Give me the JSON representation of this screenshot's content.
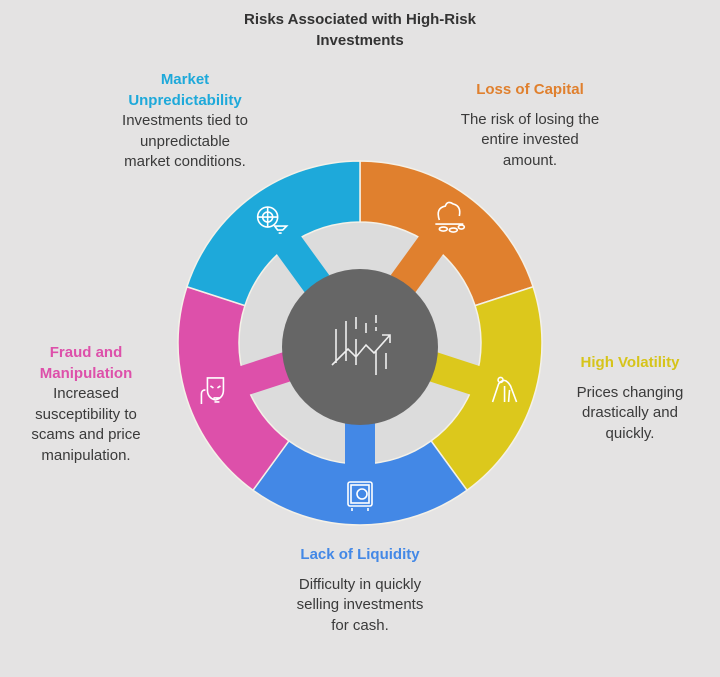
{
  "title": "Risks Associated with High-Risk Investments",
  "center_icon": "rising-chart-icon",
  "colors": {
    "background": "#e4e3e3",
    "center": "#666666",
    "ring_gap": "#dcdcdc"
  },
  "risks": [
    {
      "title": "Loss of Capital",
      "description": "The risk of losing the entire invested amount.",
      "color": "#e0802e",
      "icon": "piggy-bank-coins-icon"
    },
    {
      "title": "High Volatility",
      "description": "Prices changing drastically and quickly.",
      "color": "#dcc81c",
      "icon": "roller-coaster-icon"
    },
    {
      "title": "Lack of Liquidity",
      "description": "Difficulty in quickly selling investments for cash.",
      "color": "#4388e6",
      "icon": "safe-icon"
    },
    {
      "title": "Fraud and Manipulation",
      "description": "Increased susceptibility to scams and price manipulation.",
      "color": "#dd50aa",
      "icon": "mask-icon"
    },
    {
      "title": "Market Unpredictability",
      "description": "Investments tied to unpredictable market conditions.",
      "color": "#1ea9da",
      "icon": "radar-tornado-icon"
    }
  ]
}
